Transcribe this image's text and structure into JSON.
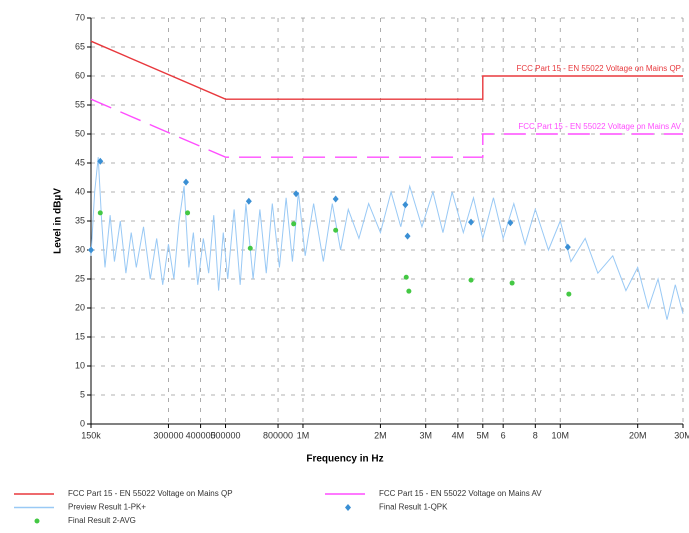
{
  "chart_data": {
    "type": "line",
    "xlabel": "Frequency in Hz",
    "ylabel": "Level in dBµV",
    "xscale": "log",
    "grid": true,
    "xlim": [
      150000,
      30000000
    ],
    "ylim": [
      0,
      70
    ],
    "xticks": [
      {
        "value": 150000,
        "label": "150k"
      },
      300000,
      400000,
      500000,
      800000,
      {
        "value": 1000000,
        "label": "1M"
      },
      {
        "value": 2000000,
        "label": "2M"
      },
      {
        "value": 3000000,
        "label": "3M"
      },
      {
        "value": 4000000,
        "label": "4M"
      },
      {
        "value": 5000000,
        "label": "5M"
      },
      {
        "value": 6000000,
        "label": "6"
      },
      {
        "value": 8000000,
        "label": "8"
      },
      {
        "value": 10000000,
        "label": "10M"
      },
      {
        "value": 20000000,
        "label": "20M"
      },
      {
        "value": 30000000,
        "label": "30M"
      }
    ],
    "yticks": [
      0,
      5,
      10,
      15,
      20,
      25,
      30,
      35,
      40,
      45,
      50,
      55,
      60,
      65,
      70
    ],
    "series": [
      {
        "name": "FCC Part 15 - EN 55022 Voltage on Mains QP",
        "color": "#e8383d",
        "style": "solid",
        "x": [
          150000,
          500000,
          5000000,
          5000000,
          30000000
        ],
        "values": [
          66,
          56,
          56,
          60,
          60
        ]
      },
      {
        "name": "FCC Part 15 - EN 55022 Voltage on Mains AV",
        "color": "#ff4dff",
        "style": "dashed",
        "x": [
          150000,
          500000,
          5000000,
          5000000,
          30000000
        ],
        "values": [
          56,
          46,
          46,
          50,
          50
        ]
      },
      {
        "name": "Preview Result 1-PK+",
        "color": "#99c9f5",
        "style": "solid",
        "x": [
          150000,
          155000,
          160000,
          165000,
          170000,
          178000,
          185000,
          195000,
          205000,
          215000,
          225000,
          240000,
          255000,
          270000,
          285000,
          300000,
          315000,
          330000,
          345000,
          360000,
          375000,
          390000,
          410000,
          430000,
          450000,
          470000,
          490000,
          510000,
          540000,
          570000,
          600000,
          640000,
          680000,
          720000,
          760000,
          810000,
          860000,
          910000,
          960000,
          1020000,
          1100000,
          1200000,
          1300000,
          1400000,
          1500000,
          1650000,
          1800000,
          2000000,
          2200000,
          2400000,
          2600000,
          2900000,
          3200000,
          3500000,
          3800000,
          4200000,
          4600000,
          5000000,
          5500000,
          6000000,
          6600000,
          7300000,
          8000000,
          9000000,
          10000000,
          11000000,
          12500000,
          14000000,
          16000000,
          18000000,
          20000000,
          22000000,
          24000000,
          26000000,
          28000000,
          30000000
        ],
        "values": [
          29,
          40,
          46,
          35,
          27,
          36,
          28,
          35,
          26,
          33,
          27,
          34,
          25,
          32,
          24,
          31,
          25,
          35,
          41,
          27,
          33,
          24,
          32,
          26,
          36,
          23,
          33,
          25,
          37,
          24,
          38,
          25,
          37,
          26,
          38,
          27,
          39,
          28,
          40,
          29,
          38,
          28,
          38,
          30,
          37,
          32,
          38,
          33,
          40,
          34,
          41,
          34,
          40,
          33,
          40,
          33,
          39,
          32,
          39,
          32,
          38,
          31,
          37,
          30,
          35,
          28,
          32,
          26,
          29,
          23,
          27,
          20,
          25,
          18,
          24,
          19
        ]
      },
      {
        "name": "Final Result 1-QPK",
        "color": "#3a8fd4",
        "style": "diamond",
        "x": [
          150000,
          163000,
          351000,
          616000,
          940000,
          1340000,
          2500000,
          2550000,
          4500000,
          6400000,
          10700000
        ],
        "values": [
          30,
          45.3,
          41.7,
          38.4,
          39.7,
          38.8,
          37.8,
          32.4,
          34.8,
          34.7,
          30.5
        ]
      },
      {
        "name": "Final Result 2-AVG",
        "color": "#44c844",
        "style": "dot",
        "x": [
          163000,
          356000,
          624000,
          920000,
          1340000,
          2520000,
          2580000,
          4500000,
          6500000,
          10800000
        ],
        "values": [
          36.4,
          36.4,
          30.3,
          34.5,
          33.4,
          25.3,
          22.9,
          24.8,
          24.3,
          22.4
        ]
      }
    ]
  }
}
